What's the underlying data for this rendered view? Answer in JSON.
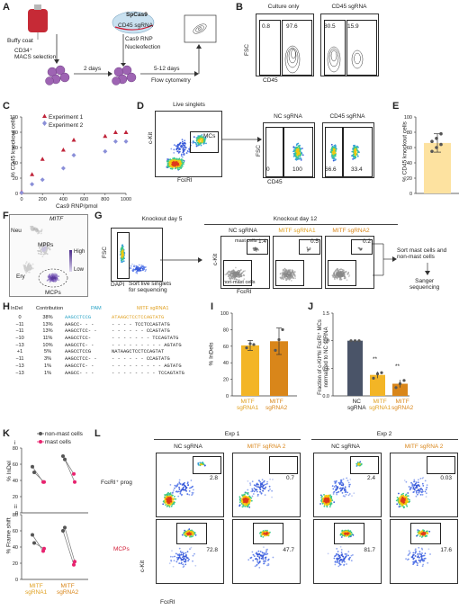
{
  "panels": {
    "A": "A",
    "B": "B",
    "C": "C",
    "D": "D",
    "E": "E",
    "F": "F",
    "G": "G",
    "H": "H",
    "I": "I",
    "J": "J",
    "K": "K",
    "L": "L"
  },
  "A": {
    "buffy": "Buffy coat",
    "cd34": "CD34⁺\nMACS selection",
    "two_days": "2 days",
    "spcas9": "SpCas9",
    "cd45sg": "CD45 sgRNA",
    "rnp": "Cas9 RNP",
    "nucleo": "Nucleofection",
    "days512": "5-12 days",
    "flow": "Flow cytometry"
  },
  "B": {
    "t1": "Culture only",
    "t2": "CD45 sgRNA",
    "n1": "0.8",
    "n2": "97.6",
    "n3": "80.5",
    "n4": "15.9",
    "ylab": "FSC",
    "xlab": "CD45"
  },
  "C": {
    "ylab": "% CD45 knockout cells",
    "xlab": "Cas9 RNP/pmol",
    "leg1": "Experiment 1",
    "leg2": "Experiment 2",
    "xt": [
      "0",
      "200",
      "400",
      "600",
      "800",
      "1000"
    ],
    "yt": [
      "0",
      "20",
      "40",
      "60",
      "80",
      "100"
    ]
  },
  "D": {
    "t1": "Live singlets",
    "t2": "NC sgRNA",
    "t3": "CD45 sgRNA",
    "mc": "MCs",
    "xlab1": "FcεRI",
    "ylab1": "c-Kit",
    "ylab2": "FSC",
    "xlab2": "CD45",
    "n1": "0",
    "n2": "100",
    "n3": "66.6",
    "n4": "33.4"
  },
  "E": {
    "ylab": "% CD45 knockout cells",
    "yt": [
      "0",
      "20",
      "40",
      "60",
      "80",
      "100"
    ]
  },
  "F": {
    "gene": "MITF",
    "neu": "Neu",
    "mpps": "MPPs",
    "ery": "Ery",
    "mcps": "MCPs",
    "high": "High",
    "low": "Low"
  },
  "G": {
    "kd5": "Knockout day 5",
    "kd12": "Knockout day 12",
    "fsc": "FSC",
    "dapi": "DAPI",
    "sort1": "Sort live singlets\nfor sequencing",
    "nc": "NC sgRNA",
    "m1": "MITF sgRNA1",
    "m2": "MITF sgRNA2",
    "mast": "mast cells",
    "nonmast": "non-mast cells",
    "ckit": "c-Kit",
    "fce": "FcεRI",
    "v1": "1.4",
    "v2": "0.5",
    "v3": "0.2",
    "sort2": "Sort mast cells and\nnon-mast cells",
    "sanger": "Sanger\nsequencing"
  },
  "H": {
    "h1": "InDel",
    "h2": "Contribution",
    "pam": "PAM",
    "sg": "MITF sgRNA1",
    "rows": [
      {
        "indel": "0",
        "contrib": "38%",
        "seq": "AAGCCTCCG",
        "seq2": "ATAAGCTCCTCCAGTATG"
      },
      {
        "indel": "−11",
        "contrib": "13%",
        "seq": "AAGCC- - -",
        "seq2": "- - - - TCCTCCAGTATG"
      },
      {
        "indel": "−11",
        "contrib": "13%",
        "seq": "AAGCCTCC- -",
        "seq2": "- - - - - - CCAGTATG"
      },
      {
        "indel": "−10",
        "contrib": "11%",
        "seq": "AAGCCTCC-",
        "seq2": "- - - - - - - TCCAGTATG"
      },
      {
        "indel": "−13",
        "contrib": "10%",
        "seq": "AAGCCTC- -",
        "seq2": "- - - - - - - - - AGTATG"
      },
      {
        "indel": "+1",
        "contrib": "5%",
        "seq": "AAGCCTCCG",
        "seq2": "NATAAGCTCCTCCAGTAT"
      },
      {
        "indel": "−11",
        "contrib": "3%",
        "seq": "AAGCCTCC- -",
        "seq2": "- - - - - - CCAGTATG"
      },
      {
        "indel": "−13",
        "contrib": "1%",
        "seq": "AAGCCTC- -",
        "seq2": "- - - - - - - - - AGTATG"
      },
      {
        "indel": "−13",
        "contrib": "1%",
        "seq": "AAGCC- - -",
        "seq2": "- - - - - - - - TCCAGTATG"
      }
    ]
  },
  "I": {
    "ylab": "% InDels",
    "yt": [
      "0",
      "20",
      "40",
      "60",
      "80",
      "100"
    ],
    "c1": "MITF\nsgRNA1",
    "c2": "MITF\nsgRNA2"
  },
  "J": {
    "ylab": "Fraction of c-Kit^hi FcεRI⁺ MCs\nnormalized to NC sgRNA",
    "yt": [
      "0.0",
      "0.5",
      "1.0",
      "1.5"
    ],
    "c0": "NC\nsgRNA",
    "c1": "MITF\nsgRNA1",
    "c2": "MITF\nsgRNA2",
    "sig1": "**",
    "sig2": "**"
  },
  "K": {
    "i": "i",
    "ii": "ii",
    "leg1": "non-mast cells",
    "leg2": "mast cells",
    "ylab1": "% InDel",
    "ylab2": "% Frame shift",
    "yt": [
      "0",
      "20",
      "40",
      "60",
      "80"
    ],
    "c1": "MITF\nsgRNA1",
    "c2": "MITF\nsgRNA2"
  },
  "L": {
    "exp1": "Exp 1",
    "exp2": "Exp 2",
    "nc": "NC sgRNA",
    "m2": "MITF sgRNA 2",
    "fprog": "FcεRI⁺ prog",
    "mcps": "MCPs",
    "ckit": "c-Kit",
    "fce": "FcεRI",
    "vals": [
      "2.8",
      "0.7",
      "2.4",
      "0.03",
      "72.8",
      "47.7",
      "81.7",
      "17.6"
    ]
  },
  "colors": {
    "red": "#c0243a",
    "purple": "#8a8fd8",
    "gold": "#f3b526",
    "orange": "#d9861a",
    "navy": "#4a5468",
    "pink": "#e8236f",
    "gray": "#555555",
    "cyan": "#29a3c6"
  },
  "chart_data": [
    {
      "type": "scatter",
      "panel": "C",
      "xlabel": "Cas9 RNP/pmol",
      "ylabel": "% CD45 knockout cells",
      "xlim": [
        0,
        1000
      ],
      "ylim": [
        0,
        100
      ],
      "series": [
        {
          "name": "Experiment 1",
          "x": [
            0,
            100,
            200,
            400,
            500,
            800,
            900,
            1000
          ],
          "values": [
            2,
            25,
            45,
            57,
            70,
            75,
            80,
            80
          ]
        },
        {
          "name": "Experiment 2",
          "x": [
            0,
            100,
            200,
            400,
            500,
            800,
            900,
            1000
          ],
          "values": [
            1,
            12,
            18,
            33,
            50,
            55,
            68,
            68
          ]
        }
      ]
    },
    {
      "type": "bar",
      "panel": "E",
      "ylabel": "% CD45 knockout cells",
      "ylim": [
        0,
        100
      ],
      "values": [
        66
      ],
      "error": [
        12
      ],
      "points": [
        55,
        60,
        64,
        68,
        72,
        78
      ]
    },
    {
      "type": "bar",
      "panel": "I",
      "ylabel": "% InDels",
      "ylim": [
        0,
        100
      ],
      "categories": [
        "MITF sgRNA1",
        "MITF sgRNA2"
      ],
      "values": [
        61,
        66
      ],
      "error": [
        6,
        16
      ],
      "points": [
        [
          58,
          63,
          62
        ],
        [
          55,
          68,
          80
        ]
      ]
    },
    {
      "type": "bar",
      "panel": "J",
      "ylim": [
        0,
        1.5
      ],
      "categories": [
        "NC sgRNA",
        "MITF sgRNA1",
        "MITF sgRNA2"
      ],
      "values": [
        1.0,
        0.38,
        0.22
      ],
      "error": [
        0,
        0.06,
        0.07
      ],
      "points": [
        [
          1,
          1,
          1
        ],
        [
          0.32,
          0.4,
          0.42
        ],
        [
          0.15,
          0.22,
          0.28
        ]
      ]
    },
    {
      "type": "line",
      "panel": "K i",
      "ylabel": "% InDel",
      "ylim": [
        0,
        80
      ],
      "categories": [
        "MITF sgRNA1",
        "MITF sgRNA2"
      ],
      "series": [
        {
          "name": "non-mast cells",
          "values": [
            [
              57,
              50
            ],
            [
              70,
              66
            ]
          ]
        },
        {
          "name": "mast cells",
          "values": [
            [
              38,
              38
            ],
            [
              48,
              38
            ]
          ]
        }
      ]
    },
    {
      "type": "line",
      "panel": "K ii",
      "ylabel": "% Frame shift",
      "ylim": [
        0,
        80
      ],
      "categories": [
        "MITF sgRNA1",
        "MITF sgRNA2"
      ],
      "series": [
        {
          "name": "non-mast cells",
          "values": [
            [
              55,
              45
            ],
            [
              60,
              64
            ]
          ]
        },
        {
          "name": "mast cells",
          "values": [
            [
              35,
              38
            ],
            [
              18,
              22
            ]
          ]
        }
      ]
    }
  ]
}
